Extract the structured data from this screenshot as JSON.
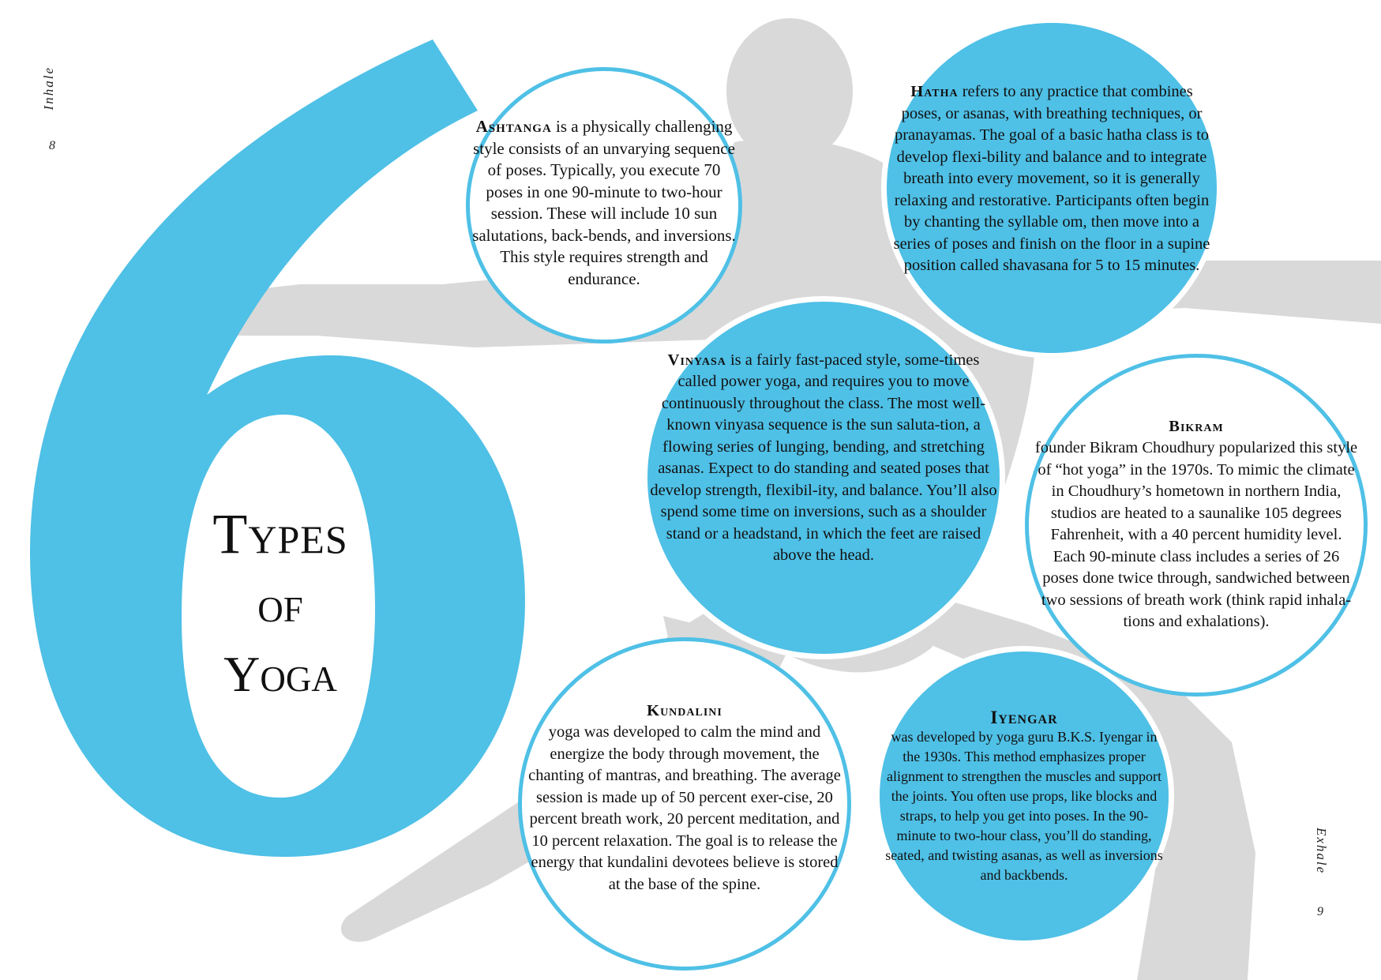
{
  "running_heads": {
    "left_title": "Inhale",
    "left_page": "8",
    "right_title": "Exhale",
    "right_page": "9"
  },
  "big_numeral": "6",
  "title": {
    "line1": "Types",
    "line2": "of",
    "line3": "Yoga"
  },
  "styles": {
    "ashtanga": {
      "name": "Ashtanga",
      "text": " is a physically challenging style consists of an unvarying sequence of poses. Typically, you execute 70 poses in one 90-minute to two-hour session. These will include 10 sun salutations, back-bends, and inversions. This style requires strength and endurance."
    },
    "hatha": {
      "name": "Hatha",
      "text": " refers to any practice that combines poses, or asanas, with breathing techniques, or pranayamas. The goal of a basic hatha class is to develop flexi-bility and balance and to integrate breath into every movement, so it is generally relaxing and restorative. Participants often begin by chanting the syllable om, then move into a series of poses and finish on the floor in a supine position called shavasana for 5 to 15 minutes."
    },
    "vinyasa": {
      "name": "Vinyasa",
      "text": " is a fairly fast-paced style, some-times called power yoga, and requires you to move continuously throughout the class. The most well-known vinyasa sequence is the sun saluta-tion, a flowing series of lunging, bending, and stretching asanas. Expect to do standing and seated poses that develop strength, flexibil-ity, and balance. You’ll also spend some time on inversions, such as a shoulder stand or a headstand, in which the feet are raised above the head."
    },
    "bikram": {
      "name": "Bikram",
      "text": "founder Bikram Choudhury popularized this style of “hot yoga” in the 1970s. To mimic the climate in Choudhury’s hometown in northern India, studios are heated to a saunalike 105 degrees Fahrenheit, with a 40 percent humidity level. Each 90-minute class includes a series of 26 poses done twice through, sandwiched between two sessions of breath work (think rapid inhala-tions and exhalations)."
    },
    "kundalini": {
      "name": "Kundalini",
      "text": "yoga was developed to calm the mind and energize the body through movement, the chanting of mantras, and breathing. The average session is made up of 50 percent exer-cise, 20 percent breath work, 20 percent meditation, and 10 percent relaxation. The goal is to release the energy that kundalini devotees believe is stored at the base of the spine."
    },
    "iyengar": {
      "name": "Iyengar",
      "text": "was developed by yoga guru B.K.S. Iyengar in the 1930s. This method emphasizes proper alignment to strengthen the muscles and support the joints. You often use props, like blocks and straps, to help you get into poses. In the 90-minute to two-hour class, you’ll do standing, seated, and twisting asanas, as well as inversions and backbends."
    }
  },
  "colors": {
    "accent_blue": "#4fc0e6",
    "figure_gray": "#d9d9d9",
    "text": "#111111"
  }
}
